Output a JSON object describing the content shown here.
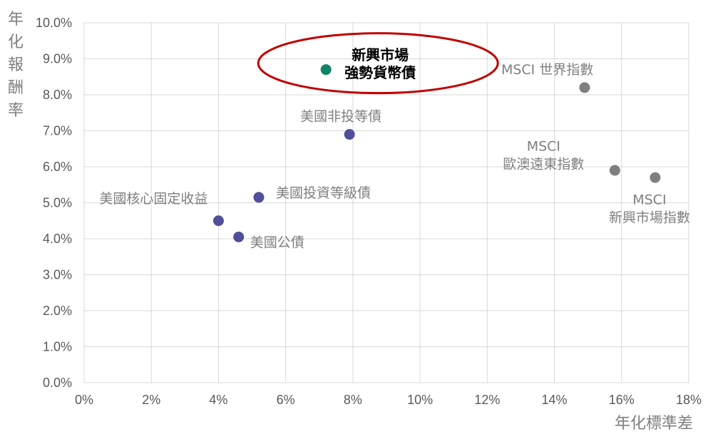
{
  "chart_data": {
    "type": "scatter",
    "xlabel": "年化標準差",
    "ylabel": "年化報酬率",
    "xlim": [
      0,
      18
    ],
    "ylim": [
      0,
      10
    ],
    "xticks": [
      0,
      2,
      4,
      6,
      8,
      10,
      12,
      14,
      16,
      18
    ],
    "xtick_labels": [
      "0%",
      "2%",
      "4%",
      "6%",
      "8%",
      "10%",
      "12%",
      "14%",
      "16%",
      "18%"
    ],
    "yticks": [
      0,
      1,
      2,
      3,
      4,
      5,
      6,
      7,
      8,
      9,
      10
    ],
    "ytick_labels": [
      "0.0%",
      "1.0%",
      "2.0%",
      "3.0%",
      "4.0%",
      "5.0%",
      "6.0%",
      "7.0%",
      "8.0%",
      "9.0%",
      "10.0%"
    ],
    "grid": true,
    "colors": {
      "navy": "#4f4f9a",
      "gray": "#7f7f7f",
      "green": "#0f8466",
      "highlight_ring": "#c00000",
      "grid": "#d9d9d9"
    },
    "points": [
      {
        "label": [
          "美國核心固定收益"
        ],
        "x": 4.0,
        "y": 4.5,
        "color": "navy",
        "highlight": false
      },
      {
        "label": [
          "美國公債"
        ],
        "x": 4.6,
        "y": 4.05,
        "color": "navy",
        "highlight": false
      },
      {
        "label": [
          "美國投資等級債"
        ],
        "x": 5.2,
        "y": 5.15,
        "color": "navy",
        "highlight": false
      },
      {
        "label": [
          "美國非投等債"
        ],
        "x": 7.9,
        "y": 6.9,
        "color": "navy",
        "highlight": false
      },
      {
        "label": [
          "新興市場",
          "強勢貨幣債"
        ],
        "x": 7.2,
        "y": 8.7,
        "color": "green",
        "highlight": true
      },
      {
        "label": [
          "MSCI 世界指數"
        ],
        "x": 14.9,
        "y": 8.2,
        "color": "gray",
        "highlight": false
      },
      {
        "label": [
          "MSCI",
          "歐澳遠東指數"
        ],
        "x": 15.8,
        "y": 5.9,
        "color": "gray",
        "highlight": false
      },
      {
        "label": [
          "MSCI",
          "新興市場指數"
        ],
        "x": 17.0,
        "y": 5.7,
        "color": "gray",
        "highlight": false
      }
    ]
  }
}
